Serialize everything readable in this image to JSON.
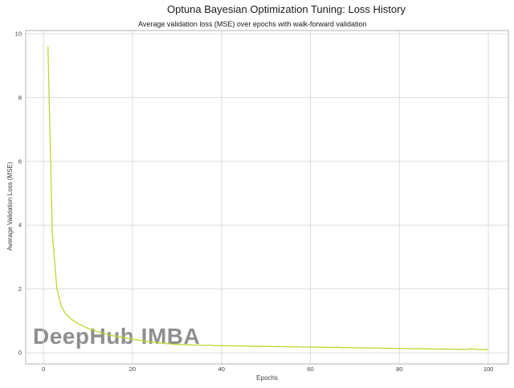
{
  "chart": {
    "title": "Optuna Bayesian Optimization Tuning: Loss History",
    "subtitle": "Average validation loss (MSE) over epochs with walk-forward validation",
    "watermark": "DeepHub IMBA"
  },
  "chart_data": {
    "type": "line",
    "title": "Optuna Bayesian Optimization Tuning: Loss History",
    "subtitle": "Average validation loss (MSE) over epochs with walk-forward validation",
    "xlabel": "Epochs",
    "ylabel": "Average Validation Loss (MSE)",
    "x_ticks": [
      0,
      20,
      40,
      60,
      80,
      100
    ],
    "y_ticks": [
      0,
      2,
      4,
      6,
      8,
      10
    ],
    "xlim": [
      -4,
      104.5
    ],
    "ylim": [
      -0.35,
      10.1
    ],
    "grid": true,
    "legend": "none",
    "colors": {
      "line": "#bed62f",
      "grid": "#dcdcdc",
      "spine": "#b3b3b3",
      "tick_text": "#3d3d3d"
    },
    "series": [
      {
        "name": "validation-loss",
        "color": "#bed62f",
        "x_start": 1,
        "x_step": 1,
        "values": [
          9.58,
          3.7,
          2.02,
          1.45,
          1.22,
          1.08,
          0.98,
          0.9,
          0.83,
          0.77,
          0.72,
          0.67,
          0.63,
          0.59,
          0.55,
          0.52,
          0.5,
          0.47,
          0.45,
          0.42,
          0.4,
          0.38,
          0.36,
          0.34,
          0.33,
          0.31,
          0.3,
          0.28,
          0.27,
          0.26,
          0.26,
          0.25,
          0.25,
          0.24,
          0.24,
          0.23,
          0.24,
          0.23,
          0.22,
          0.23,
          0.22,
          0.22,
          0.21,
          0.22,
          0.21,
          0.21,
          0.2,
          0.21,
          0.2,
          0.2,
          0.2,
          0.19,
          0.2,
          0.19,
          0.19,
          0.18,
          0.19,
          0.18,
          0.18,
          0.18,
          0.17,
          0.18,
          0.17,
          0.17,
          0.16,
          0.17,
          0.16,
          0.16,
          0.16,
          0.15,
          0.16,
          0.15,
          0.15,
          0.14,
          0.15,
          0.14,
          0.14,
          0.14,
          0.13,
          0.14,
          0.13,
          0.13,
          0.12,
          0.13,
          0.12,
          0.12,
          0.12,
          0.11,
          0.12,
          0.11,
          0.11,
          0.11,
          0.1,
          0.11,
          0.1,
          0.12,
          0.11,
          0.1,
          0.1,
          0.1
        ]
      }
    ]
  }
}
